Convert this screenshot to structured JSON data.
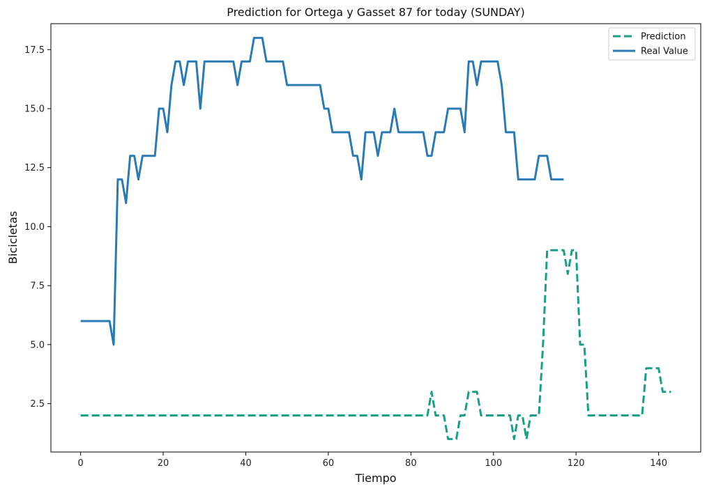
{
  "chart_data": {
    "type": "line",
    "title": "Prediction for Ortega y Gasset 87 for today (SUNDAY)",
    "xlabel": "Tiempo",
    "ylabel": "Bicicletas",
    "xlim": [
      -7.2,
      150.2
    ],
    "ylim": [
      0.45,
      18.6
    ],
    "x_ticks": [
      0,
      20,
      40,
      60,
      80,
      100,
      120,
      140
    ],
    "y_ticks": [
      2.5,
      5.0,
      7.5,
      10.0,
      12.5,
      15.0,
      17.5
    ],
    "grid": false,
    "legend_position": "top-right",
    "series": [
      {
        "name": "Prediction",
        "color": "#17a087",
        "style": "dashed",
        "points": [
          [
            0,
            2
          ],
          [
            84,
            2
          ],
          [
            85,
            3
          ],
          [
            86,
            2
          ],
          [
            88,
            2
          ],
          [
            89,
            1
          ],
          [
            91,
            1
          ],
          [
            92,
            2
          ],
          [
            93,
            2
          ],
          [
            94,
            3
          ],
          [
            96,
            3
          ],
          [
            97,
            2
          ],
          [
            104,
            2
          ],
          [
            105,
            1
          ],
          [
            106,
            2
          ],
          [
            107,
            2
          ],
          [
            108,
            1
          ],
          [
            109,
            2
          ],
          [
            111,
            2
          ],
          [
            112,
            5
          ],
          [
            113,
            9
          ],
          [
            117,
            9
          ],
          [
            118,
            8
          ],
          [
            119,
            9
          ],
          [
            120,
            9
          ],
          [
            121,
            5
          ],
          [
            122,
            5
          ],
          [
            123,
            2
          ],
          [
            136,
            2
          ],
          [
            137,
            4
          ],
          [
            140,
            4
          ],
          [
            141,
            3
          ],
          [
            143,
            3
          ]
        ]
      },
      {
        "name": "Real Value",
        "color": "#2a7ab4",
        "style": "solid",
        "points": [
          [
            0,
            6
          ],
          [
            7,
            6
          ],
          [
            8,
            5
          ],
          [
            9,
            12
          ],
          [
            10,
            12
          ],
          [
            11,
            11
          ],
          [
            12,
            13
          ],
          [
            13,
            13
          ],
          [
            14,
            12
          ],
          [
            15,
            13
          ],
          [
            18,
            13
          ],
          [
            19,
            15
          ],
          [
            20,
            15
          ],
          [
            21,
            14
          ],
          [
            22,
            16
          ],
          [
            23,
            17
          ],
          [
            24,
            17
          ],
          [
            25,
            16
          ],
          [
            26,
            17
          ],
          [
            28,
            17
          ],
          [
            29,
            15
          ],
          [
            30,
            17
          ],
          [
            37,
            17
          ],
          [
            38,
            16
          ],
          [
            39,
            17
          ],
          [
            41,
            17
          ],
          [
            42,
            18
          ],
          [
            44,
            18
          ],
          [
            45,
            17
          ],
          [
            49,
            17
          ],
          [
            50,
            16
          ],
          [
            58,
            16
          ],
          [
            59,
            15
          ],
          [
            60,
            15
          ],
          [
            61,
            14
          ],
          [
            65,
            14
          ],
          [
            66,
            13
          ],
          [
            67,
            13
          ],
          [
            68,
            12
          ],
          [
            69,
            14
          ],
          [
            71,
            14
          ],
          [
            72,
            13
          ],
          [
            73,
            14
          ],
          [
            75,
            14
          ],
          [
            76,
            15
          ],
          [
            77,
            14
          ],
          [
            83,
            14
          ],
          [
            84,
            13
          ],
          [
            85,
            13
          ],
          [
            86,
            14
          ],
          [
            88,
            14
          ],
          [
            89,
            15
          ],
          [
            92,
            15
          ],
          [
            93,
            14
          ],
          [
            94,
            17
          ],
          [
            95,
            17
          ],
          [
            96,
            16
          ],
          [
            97,
            17
          ],
          [
            101,
            17
          ],
          [
            102,
            16
          ],
          [
            103,
            14
          ],
          [
            105,
            14
          ],
          [
            106,
            12
          ],
          [
            110,
            12
          ],
          [
            111,
            13
          ],
          [
            113,
            13
          ],
          [
            114,
            12
          ],
          [
            117,
            12
          ]
        ]
      }
    ]
  }
}
